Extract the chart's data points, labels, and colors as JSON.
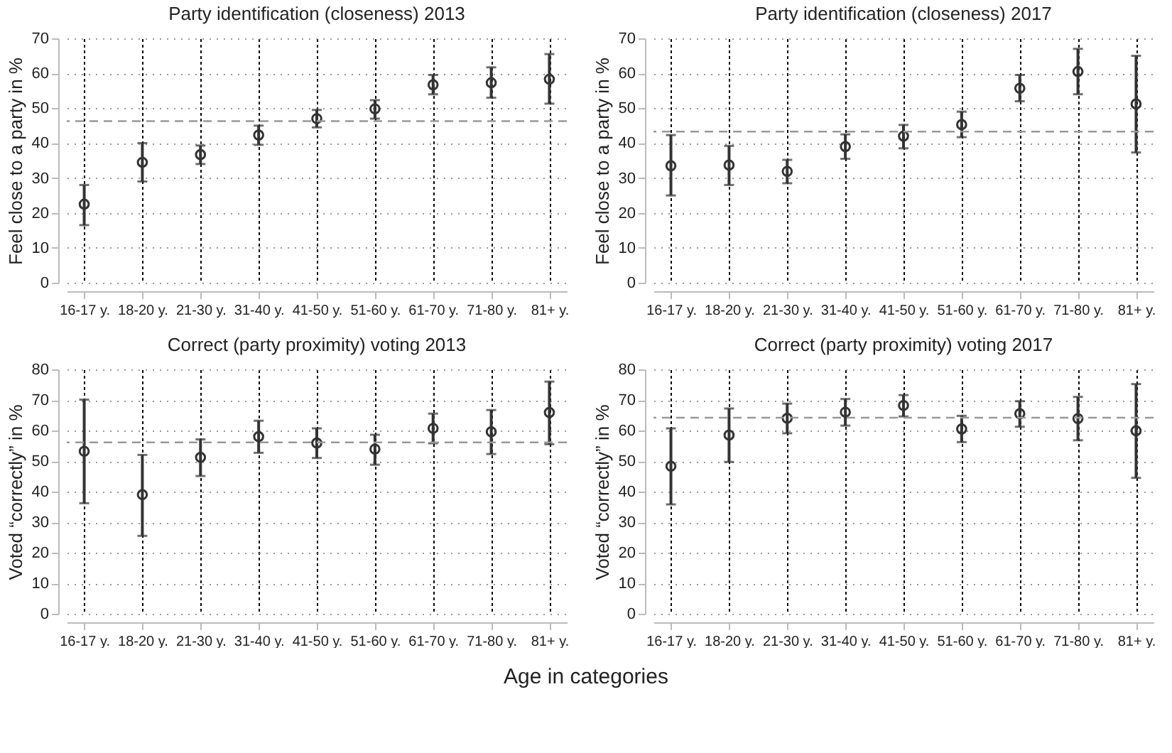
{
  "chart_data": [
    {
      "type": "scatter",
      "title": "Party identification (closeness) 2013",
      "ylabel": "Feel close to a party in %",
      "categories": [
        "16-17 y.",
        "18-20 y.",
        "21-30 y.",
        "31-40 y.",
        "41-50 y.",
        "51-60 y.",
        "61-70 y.",
        "71-80 y.",
        "81+ y."
      ],
      "series": [
        {
          "color": "#333333",
          "values": [
            22.5,
            34.5,
            36.7,
            42.3,
            47,
            49.8,
            56.7,
            57.3,
            58.3
          ],
          "errors": [
            [
              16.5,
              28
            ],
            [
              29,
              40
            ],
            [
              34,
              39.3
            ],
            [
              39.5,
              45
            ],
            [
              44.5,
              49.5
            ],
            [
              47,
              52.3
            ],
            [
              54,
              59.5
            ],
            [
              53,
              61.7
            ],
            [
              51.3,
              65.5
            ]
          ]
        }
      ],
      "ylim": [
        0,
        70
      ],
      "yticks": [
        0,
        10,
        20,
        30,
        40,
        50,
        60,
        70
      ],
      "grid": true,
      "marker": "circle",
      "ref_lines": [
        {
          "axis": "y",
          "value": 46.3,
          "color": "#999999",
          "line_style": "dashed"
        }
      ]
    },
    {
      "type": "scatter",
      "title": "Party identification (closeness) 2017",
      "ylabel": "Feel close to a party in %",
      "categories": [
        "16-17 y.",
        "18-20 y.",
        "21-30 y.",
        "31-40 y.",
        "41-50 y.",
        "51-60 y.",
        "61-70 y.",
        "71-80 y.",
        "81+ y."
      ],
      "series": [
        {
          "color": "#333333",
          "values": [
            33.5,
            33.7,
            31.9,
            39,
            42,
            45.3,
            55.7,
            60.5,
            51.2
          ],
          "errors": [
            [
              25,
              42.3
            ],
            [
              28,
              39.2
            ],
            [
              28.5,
              35.2
            ],
            [
              35.5,
              42.5
            ],
            [
              38.5,
              45.2
            ],
            [
              41.7,
              49
            ],
            [
              52,
              59.5
            ],
            [
              54,
              67
            ],
            [
              37.3,
              65
            ]
          ]
        }
      ],
      "ylim": [
        0,
        70
      ],
      "yticks": [
        0,
        10,
        20,
        30,
        40,
        50,
        60,
        70
      ],
      "grid": true,
      "marker": "circle",
      "ref_lines": [
        {
          "axis": "y",
          "value": 43.3,
          "color": "#999999",
          "line_style": "dashed"
        }
      ]
    },
    {
      "type": "scatter",
      "title": "Correct (party proximity) voting 2013",
      "ylabel": "Voted “correctly” in %",
      "xlabel": "Age in categories",
      "categories": [
        "16-17 y.",
        "18-20 y.",
        "21-30 y.",
        "31-40 y.",
        "41-50 y.",
        "51-60 y.",
        "61-70 y.",
        "71-80 y.",
        "81+ y."
      ],
      "series": [
        {
          "color": "#333333",
          "values": [
            53.2,
            39,
            51.2,
            58,
            55.9,
            53.9,
            60.7,
            59.6,
            65.9
          ],
          "errors": [
            [
              36.2,
              70.1
            ],
            [
              25.5,
              52
            ],
            [
              45.1,
              57.1
            ],
            [
              52.7,
              63.2
            ],
            [
              51,
              60.7
            ],
            [
              48.8,
              58.6
            ],
            [
              55.8,
              65.5
            ],
            [
              52.3,
              66.7
            ],
            [
              55.5,
              76
            ]
          ]
        }
      ],
      "ylim": [
        0,
        80
      ],
      "yticks": [
        0,
        10,
        20,
        30,
        40,
        50,
        60,
        70,
        80
      ],
      "grid": true,
      "marker": "circle",
      "ref_lines": [
        {
          "axis": "y",
          "value": 56.1,
          "color": "#999999",
          "line_style": "dashed"
        }
      ]
    },
    {
      "type": "scatter",
      "title": "Correct (party proximity) voting 2017",
      "ylabel": "Voted “correctly” in %",
      "categories": [
        "16-17 y.",
        "18-20 y.",
        "21-30 y.",
        "31-40 y.",
        "41-50 y.",
        "51-60 y.",
        "61-70 y.",
        "71-80 y.",
        "81+ y."
      ],
      "series": [
        {
          "color": "#333333",
          "values": [
            48.3,
            58.5,
            64,
            66,
            68.2,
            60.5,
            65.5,
            63.9,
            59.9
          ],
          "errors": [
            [
              35.8,
              60.7
            ],
            [
              49.7,
              67.2
            ],
            [
              59.1,
              68.8
            ],
            [
              61.6,
              70.3
            ],
            [
              64.6,
              71.6
            ],
            [
              56.2,
              64.8
            ],
            [
              61.2,
              69.6
            ],
            [
              56.8,
              71
            ],
            [
              44.5,
              75.2
            ]
          ]
        }
      ],
      "ylim": [
        0,
        80
      ],
      "yticks": [
        0,
        10,
        20,
        30,
        40,
        50,
        60,
        70,
        80
      ],
      "grid": true,
      "marker": "circle",
      "ref_lines": [
        {
          "axis": "y",
          "value": 64.2,
          "color": "#999999",
          "line_style": "dashed"
        }
      ]
    }
  ]
}
